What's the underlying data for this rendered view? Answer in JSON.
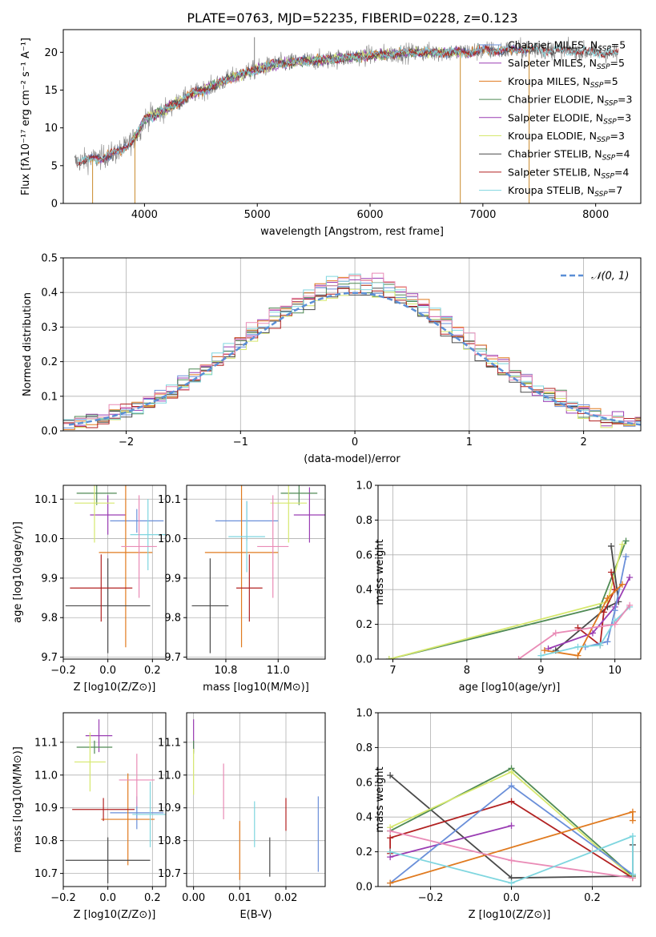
{
  "title": "PLATE=0763, MJD=52235, FIBERID=0228, z=0.123",
  "colors": {
    "Chabrier MILES": "#6a8fd9",
    "Salpeter MILES": "#9a3db3",
    "Kroupa MILES": "#e07a1f",
    "Chabrier ELODIE": "#4f8a55",
    "Salpeter ELODIE": "#9a3db3",
    "Kroupa ELODIE": "#d6e86e",
    "Chabrier STELIB": "#4a4a4a",
    "Salpeter STELIB": "#b22222",
    "Kroupa STELIB": "#7fd6df",
    "pink": "#e98bb6",
    "grey": "#808080",
    "normal_curve": "#5b8fd6"
  },
  "chart_data": [
    {
      "id": "spectrum",
      "type": "line",
      "title": "PLATE=0763, MJD=52235, FIBERID=0228, z=0.123",
      "xlabel": "wavelength [Angstrom, rest frame]",
      "ylabel": "Flux [fλ10⁻¹⁷ erg cm⁻² s⁻¹ A⁻¹]",
      "xlim": [
        3280,
        8400
      ],
      "ylim": [
        0,
        23
      ],
      "xticks": [
        "4000",
        "5000",
        "6000",
        "7000",
        "8000"
      ],
      "yticks": [
        "0",
        "5",
        "10",
        "15",
        "20"
      ],
      "legend": [
        "Chabrier MILES, N_SSP=5",
        "Salpeter MILES, N_SSP=5",
        "Kroupa MILES, N_SSP=5",
        "Chabrier ELODIE, N_SSP=3",
        "Salpeter ELODIE, N_SSP=3",
        "Kroupa ELODIE, N_SSP=3",
        "Chabrier STELIB, N_SSP=4",
        "Salpeter STELIB, N_SSP=4",
        "Kroupa STELIB, N_SSP=7"
      ],
      "legend_placement": "right",
      "continuum": {
        "x": [
          3380,
          3600,
          3800,
          3900,
          3950,
          4000,
          4200,
          4400,
          4600,
          4800,
          5000,
          5200,
          5400,
          5600,
          5800,
          6000,
          6200,
          6400,
          6600,
          6800,
          7000,
          7200,
          7400,
          7600,
          7800,
          8000,
          8200
        ],
        "y": [
          5.5,
          6.0,
          7.0,
          8.5,
          9.5,
          11.2,
          12.5,
          14.3,
          15.5,
          16.8,
          17.8,
          18.5,
          18.8,
          19.0,
          19.3,
          19.6,
          19.8,
          20.0,
          20.0,
          20.0,
          20.2,
          20.3,
          20.4,
          20.3,
          20.2,
          20.0,
          19.8
        ]
      },
      "spikes": [
        {
          "x": 3540,
          "y": 0
        },
        {
          "x": 3915,
          "y": 0
        },
        {
          "x": 4975,
          "y": 22
        },
        {
          "x": 6800,
          "y": 0
        },
        {
          "x": 7410,
          "y": 0
        }
      ]
    },
    {
      "id": "residuals",
      "type": "histogram",
      "xlabel": "(data-model)/error",
      "ylabel": "Normed distribution",
      "xlim": [
        -2.55,
        2.5
      ],
      "ylim": [
        0,
        0.5
      ],
      "xticks": [
        "−2",
        "−1",
        "0",
        "1",
        "2"
      ],
      "yticks": [
        "0.0",
        "0.1",
        "0.2",
        "0.3",
        "0.4",
        "0.5"
      ],
      "legend": [
        "𝒩(0, 1)"
      ],
      "legend_placement": "top-right",
      "bin_width": 0.1,
      "bin_start": -2.55
    },
    {
      "id": "age-vs-Z",
      "type": "scatter",
      "xlabel": "Z [log10(Z/Z⊙)]",
      "ylabel": "age [log10(age/yr)]",
      "xlim": [
        -0.2,
        0.26
      ],
      "ylim": [
        9.695,
        10.135
      ],
      "xticks": [
        "−0.2",
        "0.0",
        "0.2"
      ],
      "yticks": [
        "9.7",
        "9.8",
        "9.9",
        "10.0",
        "10.1"
      ],
      "points": [
        {
          "label": "Chabrier MILES",
          "x": 0.13,
          "y": 10.045,
          "xerr": 0.12,
          "yerr": 0.03
        },
        {
          "label": "Salpeter MILES",
          "x": 0.0,
          "y": 10.06,
          "xerr": 0.08,
          "yerr": 0.05
        },
        {
          "label": "Kroupa MILES",
          "x": 0.08,
          "y": 9.965,
          "xerr": 0.12,
          "yerr": 0.24
        },
        {
          "label": "Chabrier ELODIE",
          "x": -0.05,
          "y": 10.115,
          "xerr": 0.09,
          "yerr": 0.03
        },
        {
          "label": "Kroupa ELODIE",
          "x": -0.06,
          "y": 10.09,
          "xerr": 0.09,
          "yerr": 0.1
        },
        {
          "label": "Chabrier STELIB",
          "x": 0.0,
          "y": 9.83,
          "xerr": 0.19,
          "yerr": 0.12
        },
        {
          "label": "Salpeter STELIB",
          "x": -0.03,
          "y": 9.875,
          "xerr": 0.14,
          "yerr": 0.085
        },
        {
          "label": "Kroupa STELIB",
          "x": 0.18,
          "y": 10.01,
          "xerr": 0.08,
          "yerr": 0.09
        },
        {
          "label": "pink",
          "x": 0.14,
          "y": 9.98,
          "xerr": 0.08,
          "yerr": 0.13
        }
      ]
    },
    {
      "id": "age-vs-mass",
      "type": "scatter",
      "xlabel": "mass [log10(M/M⊙)]",
      "ylabel": "",
      "xlim": [
        10.65,
        11.18
      ],
      "ylim": [
        9.695,
        10.135
      ],
      "xticks": [
        "10.8",
        "11.0"
      ],
      "yticks": [
        "9.7",
        "9.8",
        "9.9",
        "10.0",
        "10.1"
      ],
      "points": [
        {
          "label": "Chabrier MILES",
          "x": 10.88,
          "y": 10.045,
          "xerr": 0.12,
          "yerr": 0.05
        },
        {
          "label": "Salpeter MILES",
          "x": 11.12,
          "y": 10.06,
          "xerr": 0.06,
          "yerr": 0.07
        },
        {
          "label": "Kroupa MILES",
          "x": 10.86,
          "y": 9.965,
          "xerr": 0.14,
          "yerr": 0.24
        },
        {
          "label": "Chabrier ELODIE",
          "x": 11.08,
          "y": 10.115,
          "xerr": 0.07,
          "yerr": 0.03
        },
        {
          "label": "Kroupa ELODIE",
          "x": 11.04,
          "y": 10.09,
          "xerr": 0.07,
          "yerr": 0.1
        },
        {
          "label": "Chabrier STELIB",
          "x": 10.74,
          "y": 9.83,
          "xerr": 0.07,
          "yerr": 0.12
        },
        {
          "label": "Salpeter STELIB",
          "x": 10.89,
          "y": 9.875,
          "xerr": 0.05,
          "yerr": 0.085
        },
        {
          "label": "Kroupa STELIB",
          "x": 10.88,
          "y": 10.005,
          "xerr": 0.07,
          "yerr": 0.09
        },
        {
          "label": "pink",
          "x": 10.98,
          "y": 9.98,
          "xerr": 0.06,
          "yerr": 0.13
        }
      ]
    },
    {
      "id": "mass-weight-vs-age",
      "type": "line",
      "xlabel": "age [log10(age/yr)]",
      "ylabel": "mass weight",
      "xlim": [
        6.8,
        10.35
      ],
      "ylim": [
        0,
        1.0
      ],
      "xticks": [
        "7",
        "8",
        "9",
        "10"
      ],
      "yticks": [
        "0.0",
        "0.2",
        "0.4",
        "0.6",
        "0.8",
        "1.0"
      ],
      "series": [
        {
          "label": "Chabrier ELODIE",
          "x": [
            6.95,
            9.8,
            10.15
          ],
          "y": [
            0.0,
            0.3,
            0.68
          ]
        },
        {
          "label": "Kroupa ELODIE",
          "x": [
            6.95,
            9.9,
            10.1
          ],
          "y": [
            0.0,
            0.33,
            0.66
          ]
        },
        {
          "label": "Chabrier STELIB",
          "x": [
            9.2,
            9.9,
            10.05,
            9.95
          ],
          "y": [
            0.05,
            0.3,
            0.33,
            0.65
          ]
        },
        {
          "label": "Salpeter STELIB",
          "x": [
            9.5,
            9.8,
            9.85,
            10.0,
            9.95
          ],
          "y": [
            0.18,
            0.08,
            0.27,
            0.4,
            0.5
          ]
        },
        {
          "label": "Salpeter MILES",
          "x": [
            9.1,
            9.7,
            10.0,
            10.2
          ],
          "y": [
            0.06,
            0.15,
            0.3,
            0.47
          ]
        },
        {
          "label": "Chabrier MILES",
          "x": [
            9.6,
            9.9,
            10.0,
            10.15
          ],
          "y": [
            0.07,
            0.1,
            0.28,
            0.59
          ]
        },
        {
          "label": "Kroupa MILES",
          "x": [
            9.05,
            9.5,
            9.9,
            10.1
          ],
          "y": [
            0.05,
            0.02,
            0.35,
            0.43
          ]
        },
        {
          "label": "Kroupa STELIB",
          "x": [
            9.0,
            9.5,
            9.8,
            10.0,
            10.2
          ],
          "y": [
            0.02,
            0.07,
            0.08,
            0.22,
            0.3
          ]
        },
        {
          "label": "pink",
          "x": [
            8.7,
            9.2,
            10.0,
            10.2
          ],
          "y": [
            0.0,
            0.15,
            0.2,
            0.31
          ]
        }
      ]
    },
    {
      "id": "mass-vs-Z",
      "type": "scatter",
      "xlabel": "Z [log10(Z/Z⊙)]",
      "ylabel": "mass [log10(M/M⊙)]",
      "xlim": [
        -0.2,
        0.26
      ],
      "ylim": [
        10.66,
        11.19
      ],
      "xticks": [
        "−0.2",
        "0.0",
        "0.2"
      ],
      "yticks": [
        "10.7",
        "10.8",
        "10.9",
        "11.0",
        "11.1"
      ],
      "points": [
        {
          "label": "Chabrier MILES",
          "x": 0.13,
          "y": 10.885,
          "xerr": 0.12,
          "yerr": 0.05
        },
        {
          "label": "Salpeter MILES",
          "x": -0.04,
          "y": 11.12,
          "xerr": 0.06,
          "yerr": 0.05
        },
        {
          "label": "Kroupa MILES",
          "x": 0.09,
          "y": 10.865,
          "xerr": 0.12,
          "yerr": 0.14
        },
        {
          "label": "Chabrier ELODIE",
          "x": -0.06,
          "y": 11.085,
          "xerr": 0.08,
          "yerr": 0.02
        },
        {
          "label": "Kroupa ELODIE",
          "x": -0.08,
          "y": 11.04,
          "xerr": 0.07,
          "yerr": 0.09
        },
        {
          "label": "Chabrier STELIB",
          "x": 0.0,
          "y": 10.74,
          "xerr": 0.19,
          "yerr": 0.07
        },
        {
          "label": "Salpeter STELIB",
          "x": -0.02,
          "y": 10.895,
          "xerr": 0.14,
          "yerr": 0.035
        },
        {
          "label": "Kroupa STELIB",
          "x": 0.19,
          "y": 10.88,
          "xerr": 0.08,
          "yerr": 0.1
        },
        {
          "label": "pink",
          "x": 0.13,
          "y": 10.985,
          "xerr": 0.08,
          "yerr": 0.08
        }
      ]
    },
    {
      "id": "mass-vs-EBV",
      "type": "scatter",
      "xlabel": "E(B-V)",
      "ylabel": "",
      "xlim": [
        -0.0015,
        0.0285
      ],
      "ylim": [
        10.66,
        11.19
      ],
      "xticks": [
        "0.00",
        "0.01",
        "0.02"
      ],
      "yticks": [
        "10.7",
        "10.8",
        "10.9",
        "11.0",
        "11.1"
      ],
      "points": [
        {
          "label": "Chabrier MILES",
          "x": 0.027,
          "y": 10.82,
          "yerr": 0.115
        },
        {
          "label": "Salpeter MILES",
          "x": 0.0,
          "y": 11.12,
          "yerr": 0.05
        },
        {
          "label": "Kroupa MILES",
          "x": 0.01,
          "y": 10.77,
          "yerr": 0.09
        },
        {
          "label": "Chabrier ELODIE",
          "x": 0.0,
          "y": 11.085,
          "yerr": 0.02
        },
        {
          "label": "Kroupa ELODIE",
          "x": 0.0,
          "y": 11.01,
          "yerr": 0.07
        },
        {
          "label": "Chabrier STELIB",
          "x": 0.0165,
          "y": 10.75,
          "yerr": 0.06
        },
        {
          "label": "Salpeter STELIB",
          "x": 0.02,
          "y": 10.88,
          "yerr": 0.05
        },
        {
          "label": "Kroupa STELIB",
          "x": 0.0132,
          "y": 10.85,
          "yerr": 0.07
        },
        {
          "label": "pink",
          "x": 0.0065,
          "y": 10.95,
          "yerr": 0.085
        }
      ]
    },
    {
      "id": "mass-weight-vs-Z",
      "type": "line",
      "xlabel": "Z [log10(Z/Z⊙)]",
      "ylabel": "mass weight",
      "xlim": [
        -0.33,
        0.32
      ],
      "ylim": [
        0,
        1.0
      ],
      "xticks": [
        "−0.2",
        "0.0",
        "0.2"
      ],
      "yticks": [
        "0.0",
        "0.2",
        "0.4",
        "0.6",
        "0.8",
        "1.0"
      ],
      "series": [
        {
          "label": "Chabrier STELIB",
          "x": [
            -0.3,
            0.0,
            0.3,
            0.3
          ],
          "y": [
            0.64,
            0.05,
            0.06,
            0.24
          ]
        },
        {
          "label": "Chabrier ELODIE",
          "x": [
            -0.3,
            0.0,
            0.3
          ],
          "y": [
            0.32,
            0.68,
            0.06
          ]
        },
        {
          "label": "Kroupa ELODIE",
          "x": [
            -0.3,
            0.0,
            0.3
          ],
          "y": [
            0.34,
            0.66,
            0.05
          ]
        },
        {
          "label": "Salpeter STELIB",
          "x": [
            -0.3,
            -0.3,
            0.0,
            0.3
          ],
          "y": [
            0.19,
            0.28,
            0.49,
            0.05
          ]
        },
        {
          "label": "Salpeter MILES",
          "x": [
            -0.3,
            0.0
          ],
          "y": [
            0.17,
            0.35
          ]
        },
        {
          "label": "Chabrier MILES",
          "x": [
            -0.3,
            0.0,
            0.3
          ],
          "y": [
            0.02,
            0.58,
            0.07
          ]
        },
        {
          "label": "Kroupa MILES",
          "x": [
            -0.3,
            0.3,
            0.3
          ],
          "y": [
            0.02,
            0.43,
            0.38
          ]
        },
        {
          "label": "pink",
          "x": [
            -0.3,
            0.0,
            0.3
          ],
          "y": [
            0.32,
            0.15,
            0.05
          ]
        },
        {
          "label": "Kroupa STELIB",
          "x": [
            -0.3,
            0.0,
            0.3,
            0.3
          ],
          "y": [
            0.2,
            0.02,
            0.29,
            0.07
          ]
        }
      ]
    }
  ]
}
